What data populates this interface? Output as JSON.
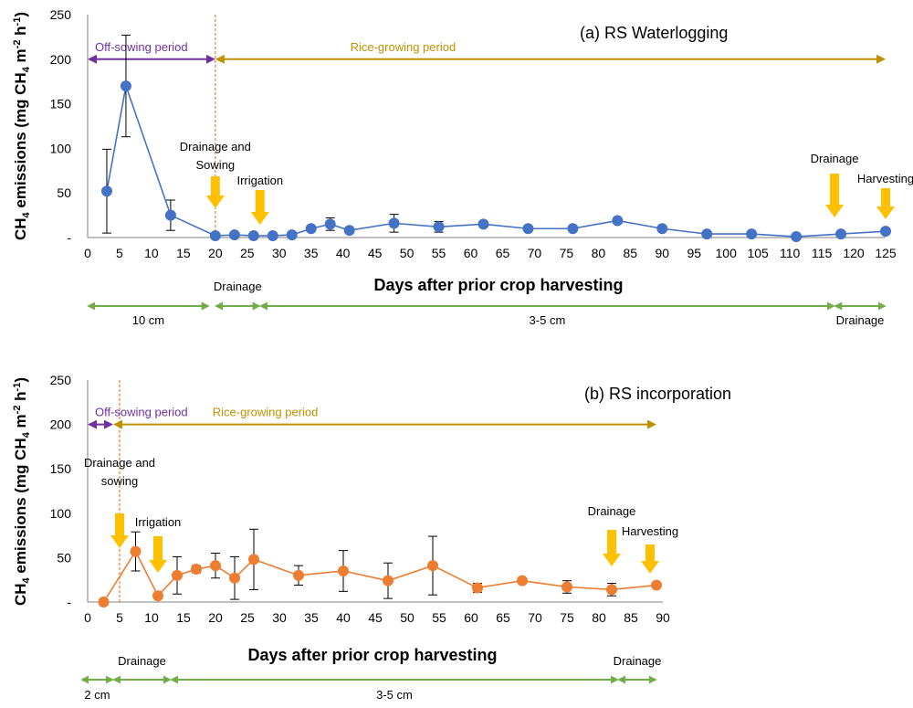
{
  "colors": {
    "series_a": "#4472c4",
    "series_b": "#ed7d31",
    "off_sowing": "#7030a0",
    "rice_growing": "#bf9000",
    "water_level": "#70ad47",
    "event_arrow": "#ffc000",
    "divider": "#ed7d31",
    "axis": "#808080",
    "error_bar": "#000000"
  },
  "chart_data": [
    {
      "type": "line",
      "title": "(a) RS Waterlogging",
      "xlabel": "Days after prior crop harvesting",
      "ylabel": "CH4 emissions (mg CH4 m-2 h-1)",
      "ylabel_parts": {
        "pre": "CH",
        "sub1": "4",
        "mid1": " emissions (mg CH",
        "sub2": "4",
        "mid2": " m",
        "sup1": "-2",
        "mid3": " h",
        "sup2": "-1",
        "post": ")"
      },
      "xlim": [
        0,
        125
      ],
      "ylim": [
        0,
        250
      ],
      "x_ticks": [
        0,
        5,
        10,
        15,
        20,
        25,
        30,
        35,
        40,
        45,
        50,
        55,
        60,
        65,
        70,
        75,
        80,
        85,
        90,
        95,
        100,
        105,
        110,
        115,
        120,
        125
      ],
      "y_ticks": [
        "-",
        "50",
        "100",
        "150",
        "200",
        "250"
      ],
      "y_tick_values": [
        0,
        50,
        100,
        150,
        200,
        250
      ],
      "grid": false,
      "series": [
        {
          "x": [
            3,
            6,
            13,
            20,
            23,
            26,
            29,
            32,
            35,
            38,
            41,
            48,
            55,
            62,
            69,
            76,
            83,
            90,
            97,
            104,
            111,
            118,
            125
          ],
          "y": [
            52,
            170,
            25,
            2,
            3,
            2,
            2,
            3,
            10,
            15,
            8,
            16,
            12,
            15,
            10,
            10,
            19,
            10,
            4,
            4,
            1,
            4,
            7
          ],
          "err": [
            47,
            57,
            17,
            1,
            1,
            1,
            1,
            1,
            3,
            7,
            2,
            10,
            6,
            3,
            2,
            2,
            3,
            2,
            1,
            1,
            1,
            1,
            2
          ]
        }
      ],
      "periods": [
        {
          "label": "Off-sowing period",
          "from": 0,
          "to": 20,
          "style": "off_sowing"
        },
        {
          "label": "Rice-growing period",
          "from": 20,
          "to": 125,
          "style": "rice_growing"
        }
      ],
      "period_y": 200,
      "divider_x": 20,
      "events": [
        {
          "lines": [
            "Drainage and",
            "Sowing"
          ],
          "x": 20
        },
        {
          "lines": [
            "Irrigation"
          ],
          "x": 27
        },
        {
          "lines": [
            "Drainage"
          ],
          "x": 117
        },
        {
          "lines": [
            "Harvesting"
          ],
          "x": 125
        }
      ],
      "water_levels": [
        {
          "label": "10 cm",
          "from": 0,
          "to": 19,
          "label_pos": "below"
        },
        {
          "label": "Drainage",
          "from": 20,
          "to": 27,
          "label_pos": "above"
        },
        {
          "label": "3-5 cm",
          "from": 27,
          "to": 117,
          "label_pos": "below"
        },
        {
          "label": "Drainage",
          "from": 117,
          "to": 125,
          "label_pos": "below"
        }
      ]
    },
    {
      "type": "line",
      "title": "(b) RS incorporation",
      "xlabel": "Days after prior crop harvesting",
      "ylabel": "CH4 emissions (mg CH4 m-2 h-1)",
      "ylabel_parts": {
        "pre": "CH",
        "sub1": "4",
        "mid1": " emissions (mg CH",
        "sub2": "4",
        "mid2": " m",
        "sup1": "-2",
        "mid3": " h",
        "sup2": "-1",
        "post": ")"
      },
      "xlim": [
        0,
        90
      ],
      "ylim": [
        0,
        250
      ],
      "x_ticks": [
        0,
        5,
        10,
        15,
        20,
        25,
        30,
        35,
        40,
        45,
        50,
        55,
        60,
        65,
        70,
        75,
        80,
        85,
        90
      ],
      "y_ticks": [
        "-",
        "50",
        "100",
        "150",
        "200",
        "250"
      ],
      "y_tick_values": [
        0,
        50,
        100,
        150,
        200,
        250
      ],
      "grid": false,
      "series": [
        {
          "x": [
            2.5,
            7.5,
            11,
            14,
            17,
            20,
            23,
            26,
            33,
            40,
            47,
            54,
            61,
            68,
            75,
            82,
            89
          ],
          "y": [
            0,
            57,
            7,
            30,
            37,
            41,
            27,
            48,
            30,
            35,
            24,
            41,
            16,
            24,
            17,
            14,
            19
          ],
          "err": [
            0,
            22,
            2,
            21,
            4,
            14,
            24,
            34,
            11,
            23,
            20,
            33,
            5,
            3,
            7,
            7,
            3
          ]
        }
      ],
      "periods": [
        {
          "label": "Off-sowing period",
          "from": 0,
          "to": 4,
          "style": "off_sowing"
        },
        {
          "label": "Rice-growing period",
          "from": 4,
          "to": 89,
          "style": "rice_growing"
        }
      ],
      "period_y": 200,
      "divider_x": 5,
      "events": [
        {
          "lines": [
            "Drainage and",
            "sowing"
          ],
          "x": 5
        },
        {
          "lines": [
            "Irrigation"
          ],
          "x": 11
        },
        {
          "lines": [
            "Drainage"
          ],
          "x": 82
        },
        {
          "lines": [
            "Harvesting"
          ],
          "x": 88
        }
      ],
      "water_levels": [
        {
          "label": "2 cm",
          "from": -1,
          "to": 4,
          "label_pos": "below"
        },
        {
          "label": "Drainage",
          "from": 4,
          "to": 13,
          "label_pos": "above"
        },
        {
          "label": "3-5 cm",
          "from": 13,
          "to": 83,
          "label_pos": "below"
        },
        {
          "label": "Drainage",
          "from": 83,
          "to": 89,
          "label_pos": "above"
        }
      ]
    }
  ]
}
